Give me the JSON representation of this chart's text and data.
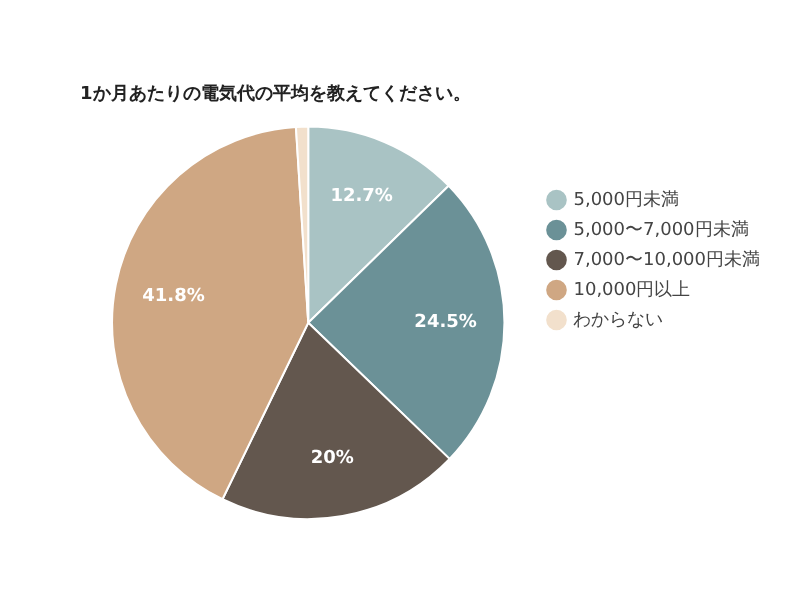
{
  "chart_data": {
    "type": "pie",
    "title": "1か月あたりの電気代の平均を教えてください。",
    "categories": [
      "5,000円未満",
      "5,000〜7,000円未満",
      "7,000〜10,000円未満",
      "10,000円以上",
      "わからない"
    ],
    "values": [
      12.7,
      24.5,
      20,
      41.8,
      1.0
    ],
    "colors": [
      "#a9c3c4",
      "#6b9197",
      "#63574e",
      "#cfa783",
      "#f2e0cc"
    ],
    "value_labels": [
      "12.7%",
      "24.5%",
      "20%",
      "41.8%",
      null
    ],
    "legend": "right"
  }
}
